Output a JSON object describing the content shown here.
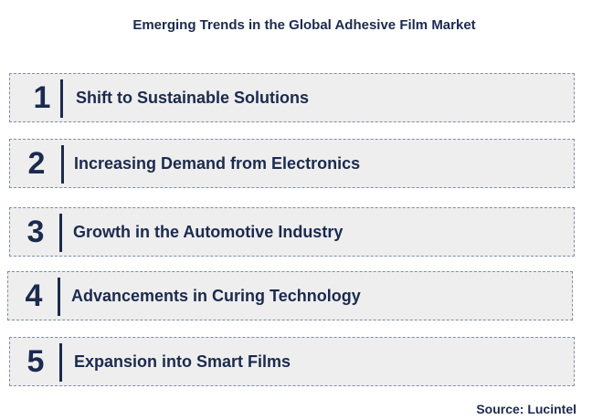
{
  "title": "Emerging Trends in the Global Adhesive Film Market",
  "trends": [
    {
      "number": "1",
      "label": "Shift to Sustainable Solutions"
    },
    {
      "number": "2",
      "label": "Increasing Demand from Electronics"
    },
    {
      "number": "3",
      "label": "Growth in the Automotive Industry"
    },
    {
      "number": "4",
      "label": "Advancements in Curing Technology"
    },
    {
      "number": "5",
      "label": "Expansion into Smart Films"
    }
  ],
  "source": "Source: Lucintel",
  "colors": {
    "text": "#1b2a4e",
    "row_background": "#eeeeee",
    "row_border": "#7f8ea6"
  }
}
